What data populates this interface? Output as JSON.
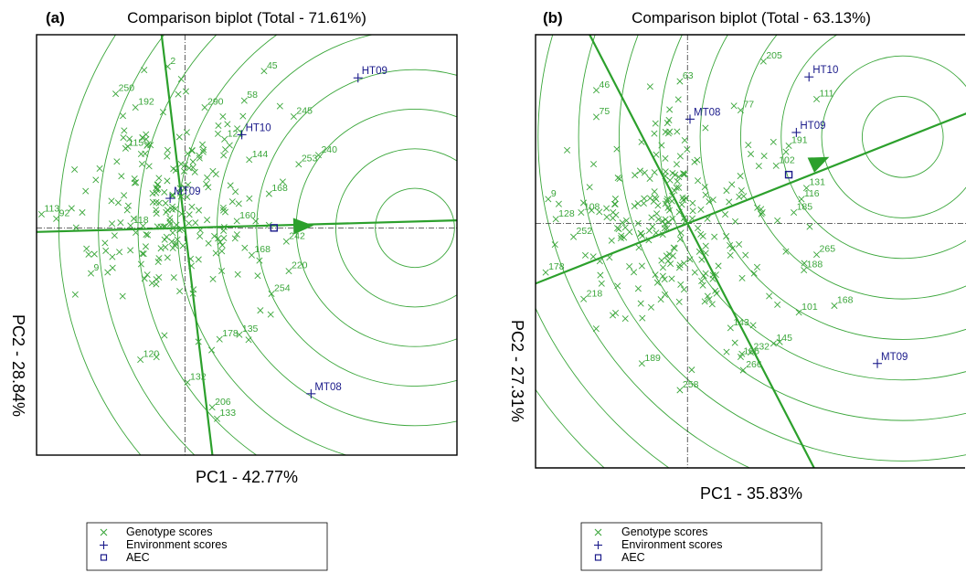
{
  "colors": {
    "genotype": "#3aa63a",
    "environment": "#1a1a8a",
    "circle": "#3aa63a",
    "axis_line": "#2ca02c",
    "frame": "#000000",
    "crosshair": "#333333"
  },
  "legend": {
    "genotype_label": "Genotype scores",
    "environment_label": "Environment scores",
    "aec_label": "AEC"
  },
  "chart_data": [
    {
      "type": "scatter",
      "panel_label": "(a)",
      "title": "Comparison biplot (Total - 71.61%)",
      "xlabel": "PC1 - 42.77%",
      "ylabel": "PC2 - 28.84%",
      "xlim": [
        -6,
        11
      ],
      "ylim": [
        -10,
        8.5
      ],
      "origin": [
        0,
        0
      ],
      "grid": false,
      "legend_position": "bottom-left",
      "ideal_point": [
        9.3,
        0
      ],
      "aec_point": [
        3.6,
        0
      ],
      "ring_step": 1.6,
      "ring_count": 9,
      "aec_abscissa": {
        "slope": 0.03,
        "arrow_at": [
          5.2,
          0.1
        ]
      },
      "aec_ordinate": {
        "slope": -9.0
      },
      "environments": [
        {
          "name": "HT09",
          "x": 7.0,
          "y": 6.6
        },
        {
          "name": "HT10",
          "x": 2.3,
          "y": 4.1
        },
        {
          "name": "MT09",
          "x": -0.6,
          "y": 1.3
        },
        {
          "name": "MT08",
          "x": 5.1,
          "y": -7.3
        }
      ],
      "genotypes": [
        {
          "label": "113",
          "x": -5.8,
          "y": 0.6
        },
        {
          "label": "92",
          "x": -5.2,
          "y": 0.4
        },
        {
          "label": "2",
          "x": -0.7,
          "y": 7.1
        },
        {
          "label": "250",
          "x": -2.8,
          "y": 5.9
        },
        {
          "label": "45",
          "x": 3.2,
          "y": 6.9
        },
        {
          "label": "58",
          "x": 2.4,
          "y": 5.6
        },
        {
          "label": "245",
          "x": 4.4,
          "y": 4.9
        },
        {
          "label": "240",
          "x": 5.4,
          "y": 3.2
        },
        {
          "label": "253",
          "x": 4.6,
          "y": 2.8
        },
        {
          "label": "168",
          "x": 3.4,
          "y": 1.5
        },
        {
          "label": "242",
          "x": 4.1,
          "y": -0.6
        },
        {
          "label": "220",
          "x": 4.2,
          "y": -1.9
        },
        {
          "label": "254",
          "x": 3.5,
          "y": -2.9
        },
        {
          "label": "135",
          "x": 2.2,
          "y": -4.7
        },
        {
          "label": "206",
          "x": 1.1,
          "y": -7.9
        },
        {
          "label": "133",
          "x": 1.3,
          "y": -8.4
        },
        {
          "label": "132",
          "x": 0.1,
          "y": -6.8
        },
        {
          "label": "120",
          "x": -1.8,
          "y": -5.8
        },
        {
          "label": "9",
          "x": -3.8,
          "y": -2.0
        },
        {
          "label": "115",
          "x": -2.4,
          "y": 3.5
        },
        {
          "label": "192",
          "x": -2.0,
          "y": 5.3
        },
        {
          "label": "290",
          "x": 0.8,
          "y": 5.3
        },
        {
          "label": "121",
          "x": 1.6,
          "y": 3.9
        },
        {
          "label": "144",
          "x": 2.6,
          "y": 3.0
        },
        {
          "label": "160",
          "x": 2.1,
          "y": 0.3
        },
        {
          "label": "168b",
          "x": 2.7,
          "y": -1.2
        },
        {
          "label": "118",
          "x": -2.2,
          "y": 0.1
        },
        {
          "label": "178",
          "x": 1.4,
          "y": -4.9
        }
      ],
      "extra_genotype_cloud": {
        "count": 210,
        "center": [
          -0.6,
          0.7
        ],
        "spread": [
          1.7,
          2.2
        ],
        "seed": 17
      }
    },
    {
      "type": "scatter",
      "panel_label": "(b)",
      "title": "Comparison biplot (Total - 63.13%)",
      "xlabel": "PC1 - 35.83%",
      "ylabel": "PC2 - 27.31%",
      "xlim": [
        -6,
        11
      ],
      "ylim": [
        -11,
        8.5
      ],
      "origin": [
        0,
        0
      ],
      "grid": false,
      "legend_position": "bottom-left",
      "ideal_point": [
        8.5,
        3.9
      ],
      "aec_point": [
        4.0,
        2.2
      ],
      "ring_step": 1.6,
      "ring_count": 11,
      "aec_abscissa": {
        "slope": 0.45,
        "arrow_at": [
          5.6,
          3.0
        ]
      },
      "aec_ordinate": {
        "slope": -2.2
      },
      "environments": [
        {
          "name": "HT10",
          "x": 4.8,
          "y": 6.6
        },
        {
          "name": "HT09",
          "x": 4.3,
          "y": 4.1
        },
        {
          "name": "MT08",
          "x": 0.1,
          "y": 4.7
        },
        {
          "name": "MT09",
          "x": 7.5,
          "y": -6.3
        }
      ],
      "genotypes": [
        {
          "label": "46",
          "x": -3.6,
          "y": 6.0
        },
        {
          "label": "75",
          "x": -3.6,
          "y": 4.8
        },
        {
          "label": "63",
          "x": -0.3,
          "y": 6.4
        },
        {
          "label": "205",
          "x": 3.0,
          "y": 7.3
        },
        {
          "label": "111",
          "x": 5.1,
          "y": 5.6
        },
        {
          "label": "77",
          "x": 2.1,
          "y": 5.1
        },
        {
          "label": "9",
          "x": -5.5,
          "y": 1.1
        },
        {
          "label": "128",
          "x": -5.2,
          "y": 0.2
        },
        {
          "label": "108",
          "x": -4.2,
          "y": 0.5
        },
        {
          "label": "252",
          "x": -4.5,
          "y": -0.6
        },
        {
          "label": "178",
          "x": -5.6,
          "y": -2.2
        },
        {
          "label": "218",
          "x": -4.1,
          "y": -3.4
        },
        {
          "label": "131",
          "x": 4.7,
          "y": 1.6
        },
        {
          "label": "116",
          "x": 4.5,
          "y": 1.1
        },
        {
          "label": "185",
          "x": 4.2,
          "y": 0.5
        },
        {
          "label": "265",
          "x": 5.1,
          "y": -1.4
        },
        {
          "label": "188",
          "x": 4.6,
          "y": -2.1
        },
        {
          "label": "168",
          "x": 5.8,
          "y": -3.7
        },
        {
          "label": "101",
          "x": 4.4,
          "y": -4.0
        },
        {
          "label": "145",
          "x": 3.4,
          "y": -5.4
        },
        {
          "label": "232",
          "x": 2.5,
          "y": -5.8
        },
        {
          "label": "186",
          "x": 2.1,
          "y": -6.0
        },
        {
          "label": "266",
          "x": 2.2,
          "y": -6.6
        },
        {
          "label": "189",
          "x": -1.8,
          "y": -6.3
        },
        {
          "label": "258",
          "x": -0.3,
          "y": -7.5
        },
        {
          "label": "191",
          "x": 4.0,
          "y": 3.5
        },
        {
          "label": "102",
          "x": 3.5,
          "y": 2.6
        },
        {
          "label": "143",
          "x": 1.7,
          "y": -4.7
        }
      ],
      "extra_genotype_cloud": {
        "count": 230,
        "center": [
          -0.4,
          0.0
        ],
        "spread": [
          2.0,
          2.3
        ],
        "seed": 41
      }
    }
  ]
}
